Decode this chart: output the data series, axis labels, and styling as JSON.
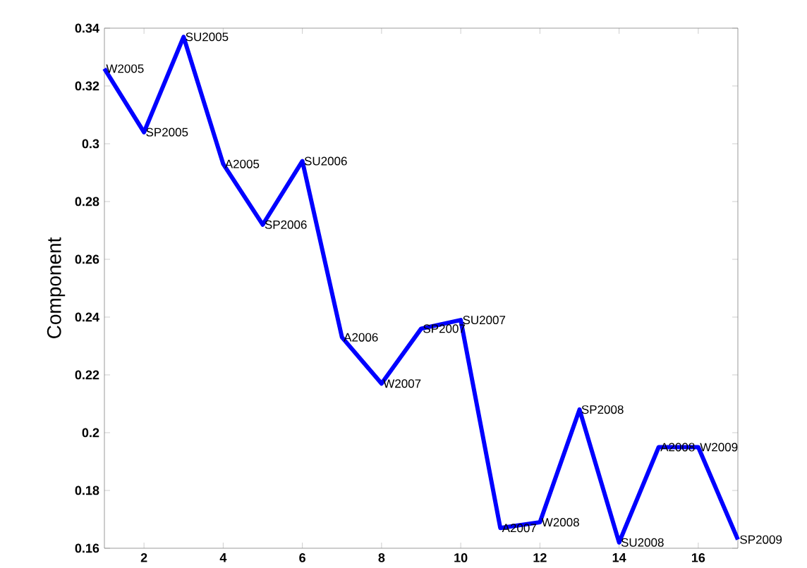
{
  "chart_data": {
    "type": "line",
    "ylabel": "Component",
    "x": [
      1,
      2,
      3,
      4,
      5,
      6,
      7,
      8,
      9,
      10,
      11,
      12,
      13,
      14,
      15,
      16,
      17
    ],
    "series": [
      {
        "color": "#0000ff",
        "values": [
          0.326,
          0.304,
          0.337,
          0.293,
          0.272,
          0.294,
          0.233,
          0.217,
          0.236,
          0.239,
          0.167,
          0.169,
          0.208,
          0.162,
          0.195,
          0.195,
          0.163
        ]
      }
    ],
    "xlim": [
      1,
      17
    ],
    "ylim": [
      0.16,
      0.34
    ],
    "xticks": [
      2,
      4,
      6,
      8,
      10,
      12,
      14,
      16
    ],
    "yticks": [
      0.16,
      0.18,
      0.2,
      0.22,
      0.24,
      0.26,
      0.28,
      0.3,
      0.32,
      0.34
    ],
    "marker": "none",
    "line_style": "solid",
    "grid": false,
    "annotations": [
      {
        "text": "W2005",
        "x": 1,
        "y": 0.326
      },
      {
        "text": "SP2005",
        "x": 2,
        "y": 0.304
      },
      {
        "text": "SU2005",
        "x": 3,
        "y": 0.337
      },
      {
        "text": "A2005",
        "x": 4,
        "y": 0.293
      },
      {
        "text": "SP2006",
        "x": 5,
        "y": 0.272
      },
      {
        "text": "SU2006",
        "x": 6,
        "y": 0.294
      },
      {
        "text": "A2006",
        "x": 7,
        "y": 0.233
      },
      {
        "text": "W2007",
        "x": 8,
        "y": 0.217
      },
      {
        "text": "SP2007",
        "x": 9,
        "y": 0.236
      },
      {
        "text": "SU2007",
        "x": 10,
        "y": 0.239
      },
      {
        "text": "A2007",
        "x": 11,
        "y": 0.167
      },
      {
        "text": "W2008",
        "x": 12,
        "y": 0.169
      },
      {
        "text": "SP2008",
        "x": 13,
        "y": 0.208
      },
      {
        "text": "SU2008",
        "x": 14,
        "y": 0.162
      },
      {
        "text": "A2008",
        "x": 15,
        "y": 0.195
      },
      {
        "text": "W2009",
        "x": 16,
        "y": 0.195
      },
      {
        "text": "SP2009",
        "x": 17,
        "y": 0.163
      }
    ]
  }
}
